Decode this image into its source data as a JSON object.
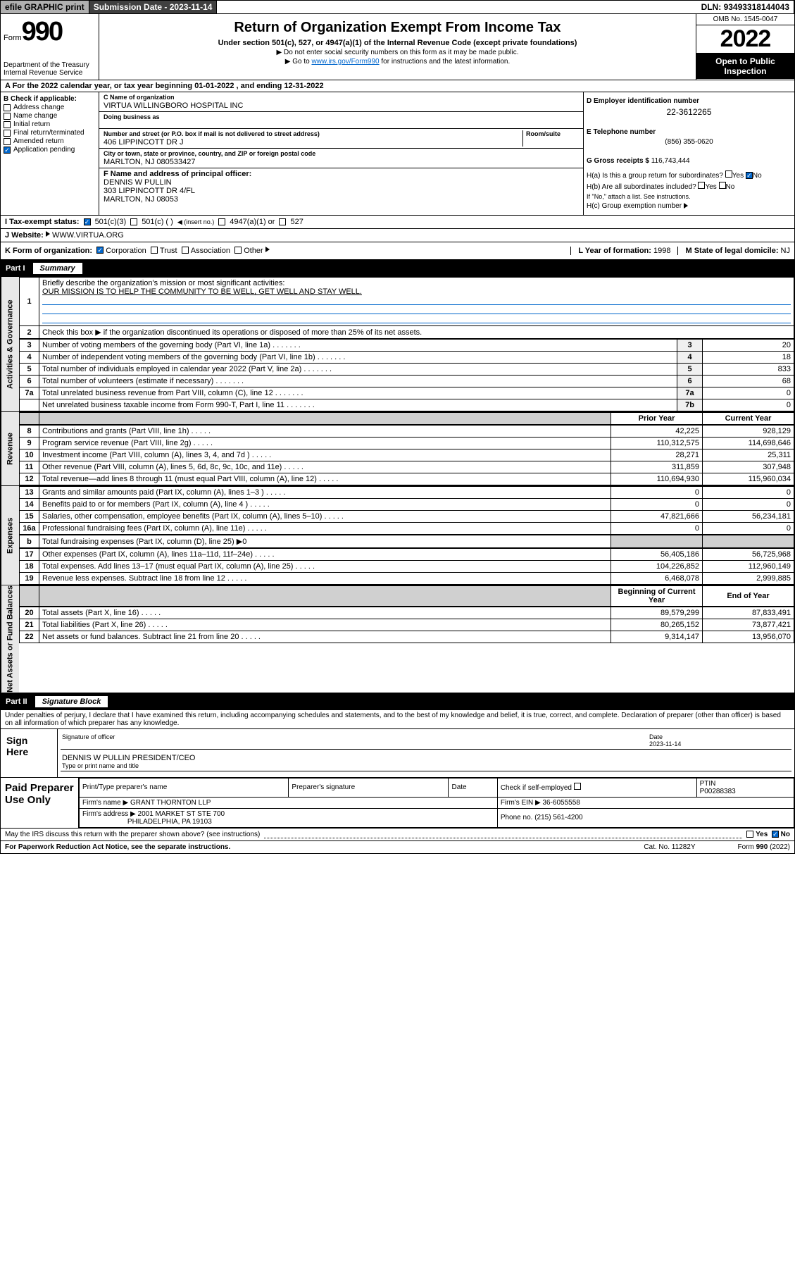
{
  "topbar": {
    "efile": "efile GRAPHIC print",
    "subdate_lbl": "Submission Date - ",
    "subdate": "2023-11-14",
    "dln_lbl": "DLN: ",
    "dln": "93493318144043"
  },
  "hdr": {
    "form_lbl": "Form",
    "form_num": "990",
    "dept": "Department of the Treasury",
    "irs": "Internal Revenue Service",
    "title": "Return of Organization Exempt From Income Tax",
    "sub": "Under section 501(c), 527, or 4947(a)(1) of the Internal Revenue Code (except private foundations)",
    "note1": "Do not enter social security numbers on this form as it may be made public.",
    "note2_a": "Go to ",
    "note2_link": "www.irs.gov/Form990",
    "note2_b": " for instructions and the latest information.",
    "omb": "OMB No. 1545-0047",
    "year": "2022",
    "open": "Open to Public Inspection"
  },
  "row_a": "A For the 2022 calendar year, or tax year beginning 01-01-2022    , and ending 12-31-2022",
  "col_b": {
    "hdr": "B Check if applicable:",
    "items": [
      "Address change",
      "Name change",
      "Initial return",
      "Final return/terminated",
      "Amended return",
      "Application pending"
    ]
  },
  "col_c": {
    "name_lbl": "C Name of organization",
    "name": "VIRTUA WILLINGBORO HOSPITAL INC",
    "dba_lbl": "Doing business as",
    "dba": "",
    "addr_lbl": "Number and street (or P.O. box if mail is not delivered to street address)",
    "room_lbl": "Room/suite",
    "addr": "406 LIPPINCOTT DR J",
    "city_lbl": "City or town, state or province, country, and ZIP or foreign postal code",
    "city": "MARLTON, NJ  080533427",
    "f_lbl": "F Name and address of principal officer:",
    "f_name": "DENNIS W PULLIN",
    "f_addr": "303 LIPPINCOTT DR 4/FL",
    "f_city": "MARLTON, NJ  08053"
  },
  "col_d": {
    "ein_lbl": "D Employer identification number",
    "ein": "22-3612265",
    "tel_lbl": "E Telephone number",
    "tel": "(856) 355-0620",
    "gross_lbl": "G Gross receipts $ ",
    "gross": "116,743,444",
    "ha": "H(a)  Is this a group return for subordinates?",
    "hb": "H(b)  Are all subordinates included?",
    "hb_note": "If \"No,\" attach a list. See instructions.",
    "hc": "H(c)  Group exemption number",
    "yes": "Yes",
    "no": "No"
  },
  "row_i": {
    "lbl": "I     Tax-exempt status:",
    "opts": [
      "501(c)(3)",
      "501(c) (  )",
      "(insert no.)",
      "4947(a)(1) or",
      "527"
    ]
  },
  "row_j": {
    "lbl": "J    Website:",
    "val": "WWW.VIRTUA.ORG"
  },
  "row_k": {
    "lbl": "K Form of organization:",
    "opts": [
      "Corporation",
      "Trust",
      "Association",
      "Other"
    ],
    "l_lbl": "L Year of formation: ",
    "l_val": "1998",
    "m_lbl": "M State of legal domicile: ",
    "m_val": "NJ"
  },
  "part1": {
    "num": "Part I",
    "ttl": "Summary"
  },
  "sides": {
    "ag": "Activities & Governance",
    "rev": "Revenue",
    "exp": "Expenses",
    "na": "Net Assets or Fund Balances"
  },
  "p1": {
    "l1": "Briefly describe the organization's mission or most significant activities:",
    "l1v": "OUR MISSION IS TO HELP THE COMMUNITY TO BE WELL, GET WELL AND STAY WELL.",
    "l2": "Check this box ▶ if the organization discontinued its operations or disposed of more than 25% of its net assets.",
    "r": [
      {
        "n": "3",
        "t": "Number of voting members of the governing body (Part VI, line 1a)",
        "c": "3",
        "v": "20"
      },
      {
        "n": "4",
        "t": "Number of independent voting members of the governing body (Part VI, line 1b)",
        "c": "4",
        "v": "18"
      },
      {
        "n": "5",
        "t": "Total number of individuals employed in calendar year 2022 (Part V, line 2a)",
        "c": "5",
        "v": "833"
      },
      {
        "n": "6",
        "t": "Total number of volunteers (estimate if necessary)",
        "c": "6",
        "v": "68"
      },
      {
        "n": "7a",
        "t": "Total unrelated business revenue from Part VIII, column (C), line 12",
        "c": "7a",
        "v": "0"
      },
      {
        "n": "",
        "t": "Net unrelated business taxable income from Form 990-T, Part I, line 11",
        "c": "7b",
        "v": "0"
      }
    ],
    "py": "Prior Year",
    "cy": "Current Year",
    "rev": [
      {
        "n": "8",
        "t": "Contributions and grants (Part VIII, line 1h)",
        "p": "42,225",
        "c": "928,129"
      },
      {
        "n": "9",
        "t": "Program service revenue (Part VIII, line 2g)",
        "p": "110,312,575",
        "c": "114,698,646"
      },
      {
        "n": "10",
        "t": "Investment income (Part VIII, column (A), lines 3, 4, and 7d )",
        "p": "28,271",
        "c": "25,311"
      },
      {
        "n": "11",
        "t": "Other revenue (Part VIII, column (A), lines 5, 6d, 8c, 9c, 10c, and 11e)",
        "p": "311,859",
        "c": "307,948"
      },
      {
        "n": "12",
        "t": "Total revenue—add lines 8 through 11 (must equal Part VIII, column (A), line 12)",
        "p": "110,694,930",
        "c": "115,960,034"
      }
    ],
    "exp": [
      {
        "n": "13",
        "t": "Grants and similar amounts paid (Part IX, column (A), lines 1–3 )",
        "p": "0",
        "c": "0"
      },
      {
        "n": "14",
        "t": "Benefits paid to or for members (Part IX, column (A), line 4 )",
        "p": "0",
        "c": "0"
      },
      {
        "n": "15",
        "t": "Salaries, other compensation, employee benefits (Part IX, column (A), lines 5–10)",
        "p": "47,821,666",
        "c": "56,234,181"
      },
      {
        "n": "16a",
        "t": "Professional fundraising fees (Part IX, column (A), line 11e)",
        "p": "0",
        "c": "0"
      }
    ],
    "l16b": "Total fundraising expenses (Part IX, column (D), line 25) ▶0",
    "exp2": [
      {
        "n": "17",
        "t": "Other expenses (Part IX, column (A), lines 11a–11d, 11f–24e)",
        "p": "56,405,186",
        "c": "56,725,968"
      },
      {
        "n": "18",
        "t": "Total expenses. Add lines 13–17 (must equal Part IX, column (A), line 25)",
        "p": "104,226,852",
        "c": "112,960,149"
      },
      {
        "n": "19",
        "t": "Revenue less expenses. Subtract line 18 from line 12",
        "p": "6,468,078",
        "c": "2,999,885"
      }
    ],
    "boy": "Beginning of Current Year",
    "eoy": "End of Year",
    "na": [
      {
        "n": "20",
        "t": "Total assets (Part X, line 16)",
        "p": "89,579,299",
        "c": "87,833,491"
      },
      {
        "n": "21",
        "t": "Total liabilities (Part X, line 26)",
        "p": "80,265,152",
        "c": "73,877,421"
      },
      {
        "n": "22",
        "t": "Net assets or fund balances. Subtract line 21 from line 20",
        "p": "9,314,147",
        "c": "13,956,070"
      }
    ]
  },
  "part2": {
    "num": "Part II",
    "ttl": "Signature Block"
  },
  "sig": {
    "decl": "Under penalties of perjury, I declare that I have examined this return, including accompanying schedules and statements, and to the best of my knowledge and belief, it is true, correct, and complete. Declaration of preparer (other than officer) is based on all information of which preparer has any knowledge.",
    "here": "Sign Here",
    "off_lbl": "Signature of officer",
    "date_lbl": "Date",
    "date": "2023-11-14",
    "name": "DENNIS W PULLIN  PRESIDENT/CEO",
    "name_lbl": "Type or print name and title",
    "prep": "Paid Preparer Use Only",
    "pt_lbl": "Print/Type preparer's name",
    "ps_lbl": "Preparer's signature",
    "d_lbl": "Date",
    "chk_lbl": "Check         if self-employed",
    "ptin_lbl": "PTIN",
    "ptin": "P00288383",
    "firm_lbl": "Firm's name    ▶ ",
    "firm": "GRANT THORNTON LLP",
    "fein_lbl": "Firm's EIN ▶ ",
    "fein": "36-6055558",
    "faddr_lbl": "Firm's address ▶ ",
    "faddr1": "2001 MARKET ST STE 700",
    "faddr2": "PHILADELPHIA, PA  19103",
    "phone_lbl": "Phone no. ",
    "phone": "(215) 561-4200",
    "may": "May the IRS discuss this return with the preparer shown above? (see instructions)"
  },
  "foot": {
    "pra": "For Paperwork Reduction Act Notice, see the separate instructions.",
    "cat": "Cat. No. 11282Y",
    "form": "Form 990 (2022)"
  }
}
